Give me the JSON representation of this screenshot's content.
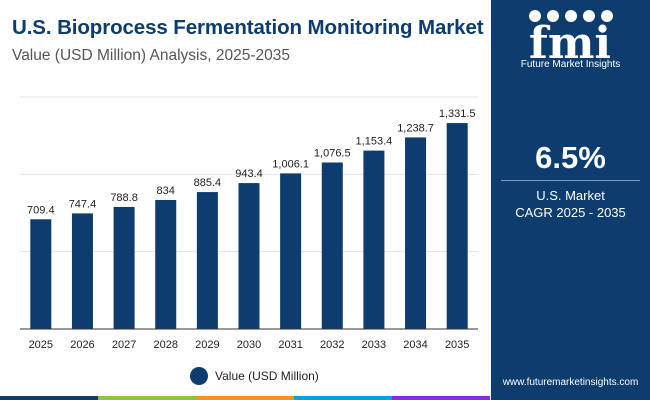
{
  "header": {
    "title": "U.S. Bioprocess Fermentation Monitoring Market",
    "subtitle": "Value (USD Million) Analysis, 2025-2035"
  },
  "chart_data": {
    "type": "bar",
    "categories": [
      "2025",
      "2026",
      "2027",
      "2028",
      "2029",
      "2030",
      "2031",
      "2032",
      "2033",
      "2034",
      "2035"
    ],
    "series": [
      {
        "name": "Value (USD Million)",
        "values": [
          709.4,
          747.4,
          788.8,
          834,
          885.4,
          943.4,
          1006.1,
          1076.5,
          1153.4,
          1238.7,
          1331.5
        ],
        "labels": [
          "709.4",
          "747.4",
          "788.8",
          "834",
          "885.4",
          "943.4",
          "1,006.1",
          "1,076.5",
          "1,153.4",
          "1,238.7",
          "1,331.5"
        ]
      }
    ],
    "ylim": [
      0,
      1500
    ],
    "grid": true,
    "legend": "bottom-center",
    "bar_color": "#0d3c6e"
  },
  "legend": {
    "label": "Value (USD Million)"
  },
  "panel": {
    "logo_text": "Future Market Insights",
    "cagr_value": "6.5%",
    "cagr_line1": "U.S. Market",
    "cagr_line2": "CAGR 2025 - 2035",
    "website": "www.futuremarketinsights.com",
    "background": "#0d3c6e"
  },
  "accent_colors": [
    "#0d3c6e",
    "#8cc63f",
    "#f7941d",
    "#00a6d6",
    "#8a2be2"
  ]
}
